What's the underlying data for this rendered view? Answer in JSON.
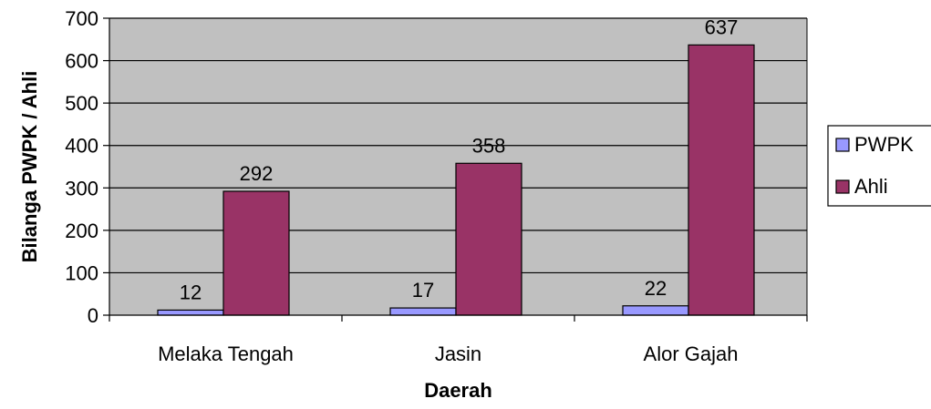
{
  "chart_data": {
    "type": "bar",
    "categories": [
      "Melaka Tengah",
      "Jasin",
      "Alor Gajah"
    ],
    "series": [
      {
        "name": "PWPK",
        "values": [
          12,
          17,
          22
        ],
        "color": "#9999ff"
      },
      {
        "name": "Ahli",
        "values": [
          292,
          358,
          637
        ],
        "color": "#993366"
      }
    ],
    "xlabel": "Daerah",
    "ylabel": "Bilanga PWPK / Ahli",
    "ylim": [
      0,
      700
    ],
    "yticks": [
      0,
      100,
      200,
      300,
      400,
      500,
      600,
      700
    ],
    "grid": true,
    "plot_background": "#c0c0c0",
    "legend_position": "right",
    "data_labels": true
  }
}
